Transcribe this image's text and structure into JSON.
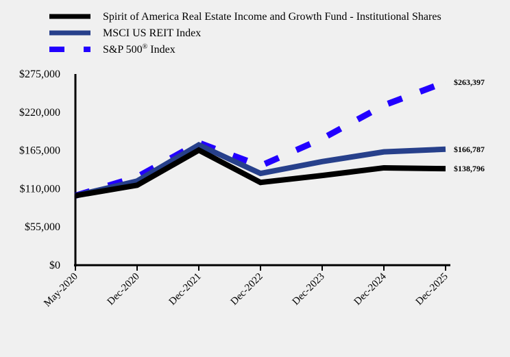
{
  "chart_data": {
    "type": "line",
    "title": "",
    "xlabel": "",
    "ylabel": "",
    "categories": [
      "May-2020",
      "Dec-2020",
      "Dec-2021",
      "Dec-2022",
      "Dec-2023",
      "Dec-2024",
      "Dec-2025"
    ],
    "ylim": [
      0,
      275000
    ],
    "yticks": [
      0,
      55000,
      110000,
      165000,
      220000,
      275000
    ],
    "ytick_labels": [
      "$0",
      "$55,000",
      "$110,000",
      "$165,000",
      "$220,000",
      "$275,000"
    ],
    "grid": false,
    "legend_placement": "top-left",
    "series": [
      {
        "name": "Spirit of America Real Estate Income and Growth Fund - Institutional Shares",
        "color": "#000000",
        "style": "solid",
        "values": [
          100000,
          115000,
          165500,
          119000,
          129000,
          140000,
          138796
        ],
        "end_label": "$138,796"
      },
      {
        "name": "MSCI US REIT Index",
        "color": "#27408b",
        "style": "solid",
        "values": [
          100000,
          121000,
          173000,
          132000,
          149000,
          163000,
          166787
        ],
        "end_label": "$166,787"
      },
      {
        "name": "S&P 500® Index",
        "name_main": "S&P 500",
        "name_sup": "®",
        "name_suffix": " Index",
        "color": "#2200ff",
        "style": "dashed",
        "values": [
          100000,
          127000,
          176000,
          143000,
          182000,
          230000,
          263397
        ],
        "end_label": "$263,397"
      }
    ]
  }
}
